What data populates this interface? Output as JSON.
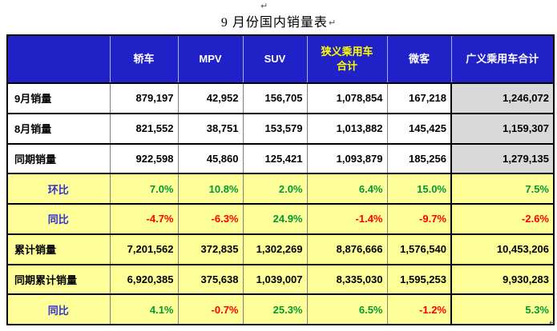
{
  "title": {
    "text": "9 月份国内销量表"
  },
  "marks": {
    "top_mark": "↵",
    "title_mark": "↵",
    "bottom_mark": "↵"
  },
  "colors": {
    "header_bg": "#2121C8",
    "header_text": "#FFFFFF",
    "header_highlight_text": "#FFFF00",
    "percent_row_bg": "#FFFF99",
    "total_column_bg": "#D9D9D9",
    "positive_green": "#009933",
    "negative_red": "#FF0000",
    "ratio_label_blue": "#3333CC",
    "border_black": "#000000",
    "border_gray": "#808080"
  },
  "table": {
    "header_cells": [
      {
        "label": "",
        "highlight": false
      },
      {
        "label": "轿车",
        "highlight": false
      },
      {
        "label": "MPV",
        "highlight": false
      },
      {
        "label": "SUV",
        "highlight": false
      },
      {
        "label": "狭义乘用车合计",
        "highlight": true
      },
      {
        "label": "微客",
        "highlight": false
      },
      {
        "label": "广义乘用车合计",
        "highlight": false
      }
    ],
    "rows": [
      {
        "label": "9月销量",
        "type": "sales",
        "values": [
          "879,197",
          "42,952",
          "156,705",
          "1,078,854",
          "167,218",
          "1,246,072"
        ]
      },
      {
        "label": "8月销量",
        "type": "sales",
        "values": [
          "821,552",
          "38,751",
          "153,579",
          "1,013,882",
          "145,425",
          "1,159,307"
        ]
      },
      {
        "label": "同期销量",
        "type": "sales",
        "values": [
          "922,598",
          "45,860",
          "125,421",
          "1,093,879",
          "185,256",
          "1,279,135"
        ]
      },
      {
        "label": "环比",
        "type": "percent",
        "values": [
          "7.0%",
          "10.8%",
          "2.0%",
          "6.4%",
          "15.0%",
          "7.5%"
        ]
      },
      {
        "label": "同比",
        "type": "percent",
        "values": [
          "-4.7%",
          "-6.3%",
          "24.9%",
          "-1.4%",
          "-9.7%",
          "-2.6%"
        ]
      },
      {
        "label": "累计销量",
        "type": "cumulative",
        "values": [
          "7,201,562",
          "372,835",
          "1,302,269",
          "8,876,666",
          "1,576,540",
          "10,453,206"
        ]
      },
      {
        "label": "同期累计销量",
        "type": "cumulative",
        "values": [
          "6,920,385",
          "375,638",
          "1,039,007",
          "8,335,030",
          "1,595,253",
          "9,930,283"
        ]
      },
      {
        "label": "同比",
        "type": "percent",
        "values": [
          "4.1%",
          "-0.7%",
          "25.3%",
          "6.5%",
          "-1.2%",
          "5.3%"
        ]
      }
    ]
  }
}
